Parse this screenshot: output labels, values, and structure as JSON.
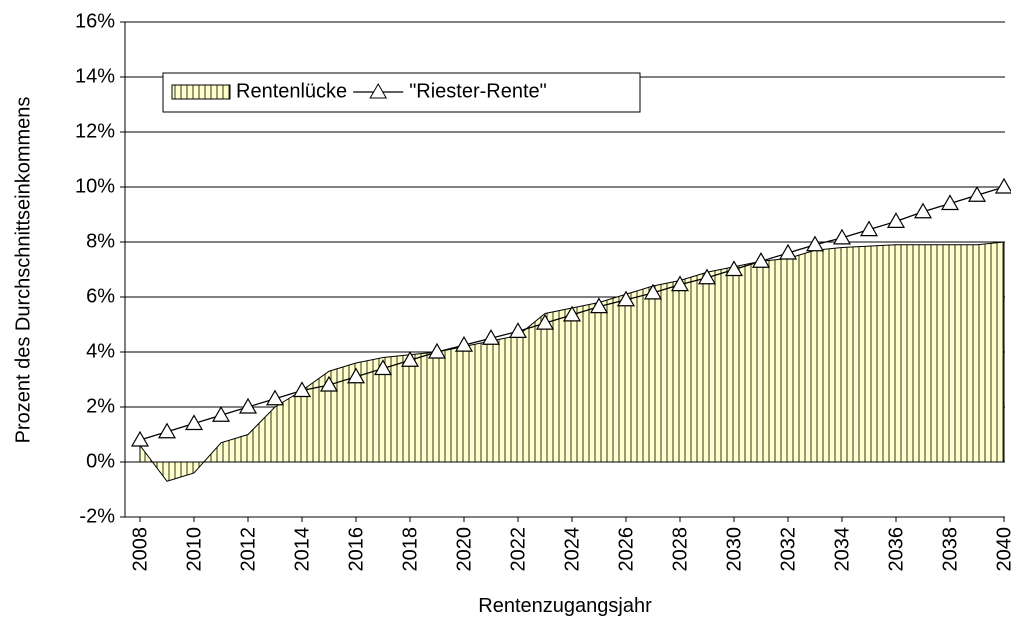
{
  "chart_data": {
    "type": "combo",
    "y_label": "Prozent des Durchschnittseinkommens",
    "x_label": "Rentenzugangsjahr",
    "x": [
      2008,
      2009,
      2010,
      2011,
      2012,
      2013,
      2014,
      2015,
      2016,
      2017,
      2018,
      2019,
      2020,
      2021,
      2022,
      2023,
      2024,
      2025,
      2026,
      2027,
      2028,
      2029,
      2030,
      2031,
      2032,
      2033,
      2034,
      2035,
      2036,
      2037,
      2038,
      2039,
      2040
    ],
    "xlim": [
      2008,
      2040
    ],
    "xticks": [
      2008,
      2010,
      2012,
      2014,
      2016,
      2018,
      2020,
      2022,
      2024,
      2026,
      2028,
      2030,
      2032,
      2034,
      2036,
      2038,
      2040
    ],
    "ylim": [
      -2,
      16
    ],
    "yticks": [
      {
        "value": -2,
        "label": "-2%"
      },
      {
        "value": 0,
        "label": "0%"
      },
      {
        "value": 2,
        "label": "2%"
      },
      {
        "value": 4,
        "label": "4%"
      },
      {
        "value": 6,
        "label": "6%"
      },
      {
        "value": 8,
        "label": "8%"
      },
      {
        "value": 10,
        "label": "10%"
      },
      {
        "value": 12,
        "label": "12%"
      },
      {
        "value": 14,
        "label": "14%"
      },
      {
        "value": 16,
        "label": "16%"
      }
    ],
    "grid": true,
    "legend": "upper-left",
    "series": [
      {
        "name": "Rentenlücke",
        "kind": "area",
        "color": "#ffffcc",
        "values": [
          0.6,
          -0.7,
          -0.4,
          0.7,
          1.0,
          2.0,
          2.6,
          3.3,
          3.6,
          3.8,
          3.9,
          4.0,
          4.2,
          4.4,
          4.6,
          5.4,
          5.6,
          5.8,
          6.1,
          6.4,
          6.6,
          6.9,
          7.1,
          7.3,
          7.4,
          7.7,
          7.8,
          7.85,
          7.9,
          7.9,
          7.9,
          7.9,
          8.0
        ]
      },
      {
        "name": "\"Riester-Rente\"",
        "kind": "line",
        "marker": "triangle",
        "color": "#000000",
        "values": [
          0.8,
          1.1,
          1.4,
          1.7,
          2.0,
          2.3,
          2.6,
          2.8,
          3.1,
          3.4,
          3.7,
          4.0,
          4.25,
          4.5,
          4.75,
          5.05,
          5.35,
          5.65,
          5.9,
          6.15,
          6.45,
          6.7,
          7.0,
          7.3,
          7.6,
          7.9,
          8.15,
          8.45,
          8.75,
          9.1,
          9.4,
          9.7,
          10.0
        ]
      }
    ]
  }
}
